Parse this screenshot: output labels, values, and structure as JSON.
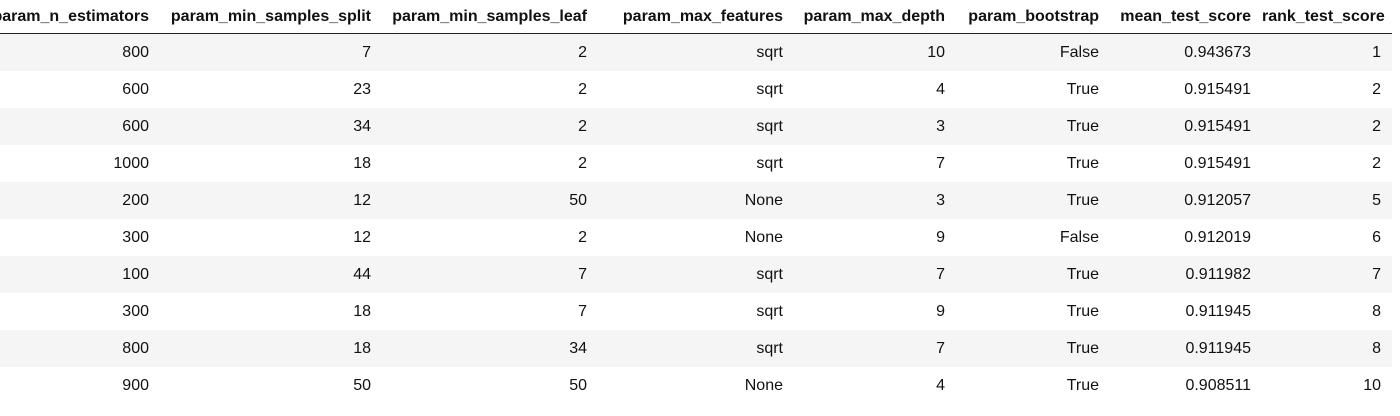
{
  "table": {
    "columns": [
      "param_n_estimators",
      "param_min_samples_split",
      "param_min_samples_leaf",
      "param_max_features",
      "param_max_depth",
      "param_bootstrap",
      "mean_test_score",
      "rank_test_score"
    ],
    "rows": [
      [
        "800",
        "7",
        "2",
        "sqrt",
        "10",
        "False",
        "0.943673",
        "1"
      ],
      [
        "600",
        "23",
        "2",
        "sqrt",
        "4",
        "True",
        "0.915491",
        "2"
      ],
      [
        "600",
        "34",
        "2",
        "sqrt",
        "3",
        "True",
        "0.915491",
        "2"
      ],
      [
        "1000",
        "18",
        "2",
        "sqrt",
        "7",
        "True",
        "0.915491",
        "2"
      ],
      [
        "200",
        "12",
        "50",
        "None",
        "3",
        "True",
        "0.912057",
        "5"
      ],
      [
        "300",
        "12",
        "2",
        "None",
        "9",
        "False",
        "0.912019",
        "6"
      ],
      [
        "100",
        "44",
        "7",
        "sqrt",
        "7",
        "True",
        "0.911982",
        "7"
      ],
      [
        "300",
        "18",
        "7",
        "sqrt",
        "9",
        "True",
        "0.911945",
        "8"
      ],
      [
        "800",
        "18",
        "34",
        "sqrt",
        "7",
        "True",
        "0.911945",
        "8"
      ],
      [
        "900",
        "50",
        "50",
        "None",
        "4",
        "True",
        "0.908511",
        "10"
      ]
    ]
  }
}
